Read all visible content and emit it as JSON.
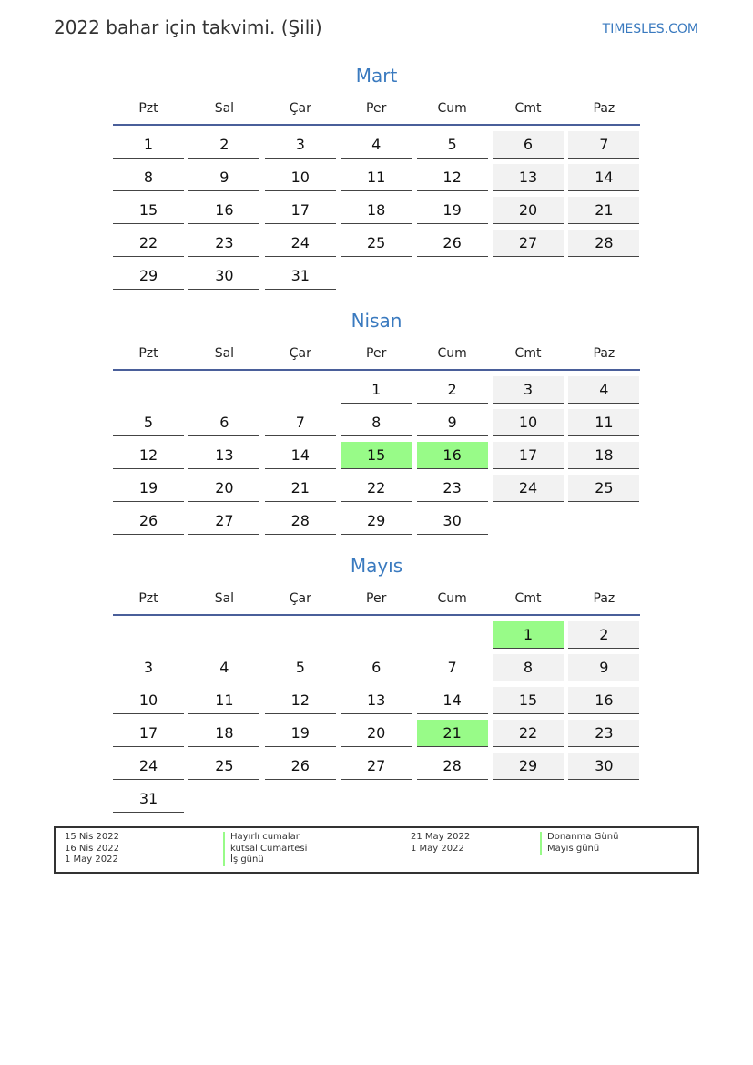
{
  "header": {
    "title": "2022 bahar için takvimi. (Şili)",
    "brand": "TIMESLES.COM"
  },
  "weekdays": [
    "Pzt",
    "Sal",
    "Çar",
    "Per",
    "Cum",
    "Cmt",
    "Paz"
  ],
  "colors": {
    "accent": "#3a7abf",
    "weekend": "#f2f2f2",
    "holiday": "#98fb88",
    "rule": "#4a5f9a"
  },
  "months": [
    {
      "name": "Mart",
      "start_weekday": 1,
      "days": 31,
      "holidays": []
    },
    {
      "name": "Nisan",
      "start_weekday": 4,
      "days": 30,
      "holidays": [
        15,
        16
      ]
    },
    {
      "name": "Mayıs",
      "start_weekday": 6,
      "days": 31,
      "holidays": [
        1,
        21
      ]
    }
  ],
  "legend": {
    "col1_dates": [
      "15 Nis 2022",
      "16 Nis 2022",
      "1 May 2022"
    ],
    "col1_names": [
      "Hayırlı cumalar",
      "kutsal Cumartesi",
      "İş günü"
    ],
    "col2_dates": [
      "21 May 2022",
      "1 May 2022"
    ],
    "col2_names": [
      "Donanma Günü",
      "Mayıs günü"
    ]
  }
}
